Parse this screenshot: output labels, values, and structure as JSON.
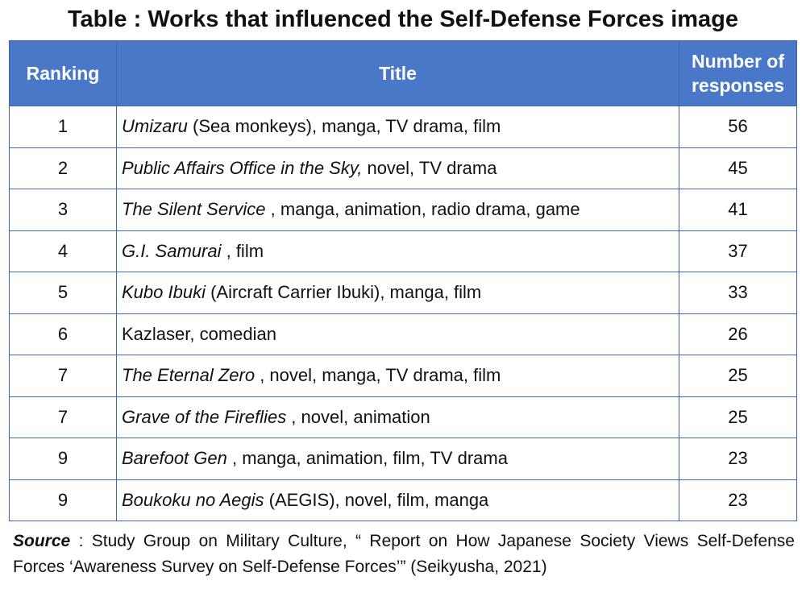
{
  "title": "Table : Works that influenced the Self-Defense Forces image",
  "table": {
    "headers": {
      "ranking": "Ranking",
      "title": "Title",
      "responses_line1": "Number of",
      "responses_line2": "responses"
    },
    "rows": [
      {
        "rank": "1",
        "work": "Umizaru",
        "detail": " (Sea monkeys), manga, TV drama, film",
        "count": "56"
      },
      {
        "rank": "2",
        "work": "Public Affairs Office in the Sky,",
        "detail": " novel, TV drama",
        "count": "45"
      },
      {
        "rank": "3",
        "work": "The Silent Service",
        "detail": " , manga, animation, radio drama, game",
        "count": "41"
      },
      {
        "rank": "4",
        "work": "G.I. Samurai",
        "detail": " , film",
        "count": "37"
      },
      {
        "rank": "5",
        "work": "Kubo Ibuki",
        "detail": " (Aircraft Carrier Ibuki), manga, film",
        "count": "33"
      },
      {
        "rank": "6",
        "work": "",
        "detail": "Kazlaser, comedian",
        "count": "26"
      },
      {
        "rank": "7",
        "work": "The Eternal Zero",
        "detail": " , novel, manga, TV drama, film",
        "count": "25"
      },
      {
        "rank": "7",
        "work": "Grave of the Fireflies",
        "detail": " , novel, animation",
        "count": "25"
      },
      {
        "rank": "9",
        "work": "Barefoot Gen",
        "detail": " , manga, animation, film, TV drama",
        "count": "23"
      },
      {
        "rank": "9",
        "work": "Boukoku no Aegis",
        "detail": " (AEGIS), novel, film, manga",
        "count": "23"
      }
    ]
  },
  "source": {
    "label": "Source",
    "colon": " : ",
    "text": "Study Group on Military Culture, “ Report on How Japanese Society Views Self-Defense Forces ‘Awareness Survey on Self-Defense Forces’” (Seikyusha, 2021)"
  },
  "colors": {
    "header_bg": "#4a78c8",
    "border": "#3f67ad",
    "header_text": "#ffffff"
  }
}
